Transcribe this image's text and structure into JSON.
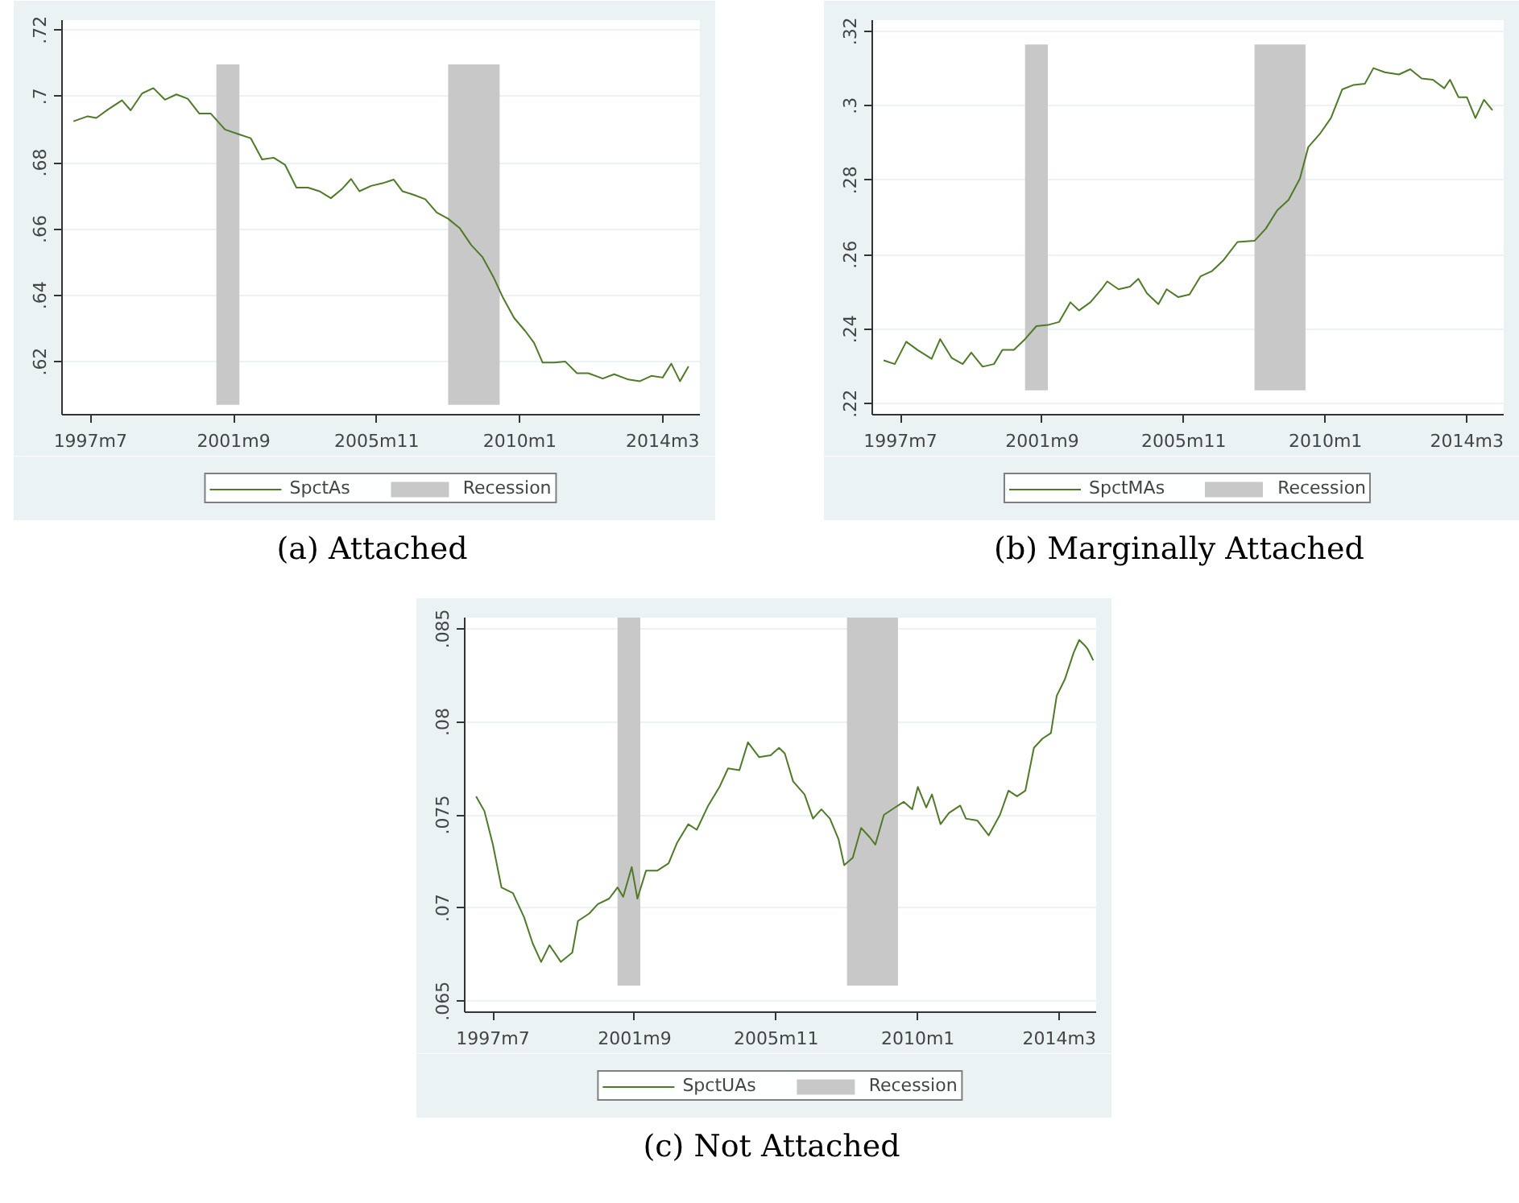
{
  "chart_data": [
    {
      "type": "line",
      "title": "(a) Attached",
      "grid": "y",
      "legend": "bottom",
      "marker": "none",
      "line_style": "solid",
      "x": [
        "1997-01",
        "1997-06",
        "1997-09",
        "1998-01",
        "1998-06",
        "1998-09",
        "1999-01",
        "1999-05",
        "1999-09",
        "2000-01",
        "2000-05",
        "2000-09",
        "2001-01",
        "2001-06",
        "2001-11",
        "2002-03",
        "2002-07",
        "2002-11",
        "2003-03",
        "2003-07",
        "2003-11",
        "2004-03",
        "2004-07",
        "2004-11",
        "2005-02",
        "2005-05",
        "2005-09",
        "2006-01",
        "2006-05",
        "2006-08",
        "2006-12",
        "2007-04",
        "2007-08",
        "2007-12",
        "2008-04",
        "2008-08",
        "2008-12",
        "2009-04",
        "2009-07",
        "2009-11",
        "2010-03",
        "2010-06",
        "2010-09",
        "2011-01",
        "2011-05",
        "2011-09",
        "2012-01",
        "2012-06",
        "2012-10",
        "2013-03",
        "2013-07",
        "2013-11",
        "2014-03",
        "2014-06",
        "2014-09",
        "2014-12"
      ],
      "series": [
        {
          "name": "SpctAs",
          "color": "#4f7a28",
          "values": [
            0.6925,
            0.694,
            0.6935,
            0.696,
            0.6988,
            0.6958,
            0.7009,
            0.7025,
            0.699,
            0.7006,
            0.6993,
            0.6948,
            0.6948,
            0.69,
            0.6885,
            0.6874,
            0.681,
            0.6815,
            0.6794,
            0.6725,
            0.6725,
            0.6714,
            0.6693,
            0.6722,
            0.6751,
            0.6714,
            0.673,
            0.6738,
            0.6749,
            0.6714,
            0.6703,
            0.669,
            0.665,
            0.6631,
            0.6603,
            0.6552,
            0.6515,
            0.6452,
            0.6396,
            0.6332,
            0.6292,
            0.6257,
            0.6197,
            0.6197,
            0.62,
            0.6165,
            0.6165,
            0.6149,
            0.6162,
            0.6146,
            0.6141,
            0.6157,
            0.6152,
            0.6194,
            0.6141,
            0.6186
          ]
        }
      ],
      "bands": [
        {
          "axis": "x",
          "from": "2001-03",
          "to": "2001-11",
          "label": "Recession",
          "color": "#c8c8c8"
        },
        {
          "axis": "x",
          "from": "2007-12",
          "to": "2009-06",
          "color": "#c8c8c8"
        }
      ],
      "xlim": [
        "1996-09",
        "2015-04"
      ],
      "xticks": [
        {
          "value": "1997-07",
          "label": "1997m7"
        },
        {
          "value": "2001-09",
          "label": "2001m9"
        },
        {
          "value": "2005-11",
          "label": "2005m11"
        },
        {
          "value": "2010-01",
          "label": "2010m1"
        },
        {
          "value": "2014-03",
          "label": "2014m3"
        }
      ],
      "ylim": [
        0.604,
        0.723
      ],
      "yticks": [
        {
          "value": 0.62,
          "label": ".62"
        },
        {
          "value": 0.64,
          "label": ".64"
        },
        {
          "value": 0.66,
          "label": ".66"
        },
        {
          "value": 0.68,
          "label": ".68"
        },
        {
          "value": 0.7,
          "label": ".7"
        },
        {
          "value": 0.72,
          "label": ".72"
        }
      ]
    },
    {
      "type": "line",
      "title": "(b) Marginally Attached",
      "grid": "y",
      "legend": "bottom",
      "marker": "none",
      "line_style": "solid",
      "x": [
        "1997-01",
        "1997-05",
        "1997-09",
        "1998-01",
        "1998-06",
        "1998-09",
        "1999-01",
        "1999-05",
        "1999-08",
        "1999-12",
        "2000-04",
        "2000-07",
        "2000-11",
        "2001-03",
        "2001-07",
        "2001-11",
        "2002-03",
        "2002-07",
        "2002-10",
        "2003-02",
        "2003-06",
        "2003-08",
        "2003-12",
        "2004-04",
        "2004-07",
        "2004-10",
        "2005-02",
        "2005-05",
        "2005-09",
        "2006-01",
        "2006-05",
        "2006-09",
        "2007-01",
        "2007-06",
        "2007-12",
        "2008-04",
        "2008-08",
        "2008-12",
        "2009-04",
        "2009-07",
        "2009-11",
        "2010-03",
        "2010-07",
        "2010-11",
        "2011-03",
        "2011-06",
        "2011-10",
        "2012-03",
        "2012-07",
        "2012-11",
        "2013-03",
        "2013-07",
        "2013-09",
        "2013-12",
        "2014-03",
        "2014-06",
        "2014-09",
        "2014-12"
      ],
      "series": [
        {
          "name": "SpctMAs",
          "color": "#4f7a28",
          "values": [
            0.2316,
            0.2306,
            0.2366,
            0.2344,
            0.232,
            0.2373,
            0.2323,
            0.2306,
            0.2337,
            0.2299,
            0.2306,
            0.2344,
            0.2344,
            0.2373,
            0.2408,
            0.2411,
            0.2419,
            0.2472,
            0.245,
            0.2472,
            0.2507,
            0.2528,
            0.2507,
            0.2514,
            0.2535,
            0.2496,
            0.2467,
            0.2507,
            0.2486,
            0.2493,
            0.2542,
            0.2556,
            0.2585,
            0.2634,
            0.2637,
            0.267,
            0.2719,
            0.2747,
            0.2804,
            0.2889,
            0.2924,
            0.2967,
            0.3044,
            0.3056,
            0.3059,
            0.3101,
            0.309,
            0.3084,
            0.3098,
            0.3073,
            0.307,
            0.3047,
            0.307,
            0.3023,
            0.3023,
            0.2967,
            0.3016,
            0.2988
          ]
        }
      ],
      "bands": [
        {
          "axis": "x",
          "from": "2001-03",
          "to": "2001-11",
          "label": "Recession",
          "color": "#c8c8c8"
        },
        {
          "axis": "x",
          "from": "2007-12",
          "to": "2009-06",
          "color": "#c8c8c8"
        }
      ],
      "xlim": [
        "1996-09",
        "2015-04"
      ],
      "xticks": [
        {
          "value": "1997-07",
          "label": "1997m7"
        },
        {
          "value": "2001-09",
          "label": "2001m9"
        },
        {
          "value": "2005-11",
          "label": "2005m11"
        },
        {
          "value": "2010-01",
          "label": "2010m1"
        },
        {
          "value": "2014-03",
          "label": "2014m3"
        }
      ],
      "ylim": [
        0.217,
        0.323
      ],
      "yticks": [
        {
          "value": 0.22,
          "label": ".22"
        },
        {
          "value": 0.24,
          "label": ".24"
        },
        {
          "value": 0.26,
          "label": ".26"
        },
        {
          "value": 0.28,
          "label": ".28"
        },
        {
          "value": 0.3,
          "label": ".3"
        },
        {
          "value": 0.32,
          "label": ".32"
        }
      ]
    },
    {
      "type": "line",
      "title": "(c) Not Attached",
      "grid": "y",
      "legend": "bottom",
      "marker": "none",
      "line_style": "solid",
      "x": [
        "1997-01",
        "1997-04",
        "1997-07",
        "1997-10",
        "1998-02",
        "1998-06",
        "1998-09",
        "1998-12",
        "1999-03",
        "1999-07",
        "1999-11",
        "2000-01",
        "2000-05",
        "2000-08",
        "2000-12",
        "2001-03",
        "2001-05",
        "2001-08",
        "2001-10",
        "2002-01",
        "2002-05",
        "2002-09",
        "2002-12",
        "2003-04",
        "2003-07",
        "2003-11",
        "2004-03",
        "2004-06",
        "2004-10",
        "2005-01",
        "2005-05",
        "2005-09",
        "2005-12",
        "2006-02",
        "2006-05",
        "2006-09",
        "2006-12",
        "2007-03",
        "2007-06",
        "2007-09",
        "2007-11",
        "2008-02",
        "2008-05",
        "2008-08",
        "2008-10",
        "2009-01",
        "2009-05",
        "2009-08",
        "2009-11",
        "2010-01",
        "2010-04",
        "2010-06",
        "2010-09",
        "2010-12",
        "2011-04",
        "2011-06",
        "2011-10",
        "2012-02",
        "2012-06",
        "2012-09",
        "2012-12",
        "2013-03",
        "2013-06",
        "2013-09",
        "2013-12",
        "2014-02",
        "2014-05",
        "2014-08",
        "2014-10",
        "2014-12",
        "2015-01",
        "2015-03"
      ],
      "series": [
        {
          "name": "SpctUAs",
          "color": "#4f7a28",
          "values": [
            0.076,
            0.0752,
            0.0734,
            0.0711,
            0.0708,
            0.0695,
            0.0681,
            0.0671,
            0.068,
            0.0671,
            0.0676,
            0.0693,
            0.0697,
            0.0702,
            0.0705,
            0.0711,
            0.0706,
            0.0722,
            0.0705,
            0.072,
            0.072,
            0.0724,
            0.0735,
            0.0745,
            0.0742,
            0.0755,
            0.0765,
            0.0775,
            0.0774,
            0.0789,
            0.0781,
            0.0782,
            0.0786,
            0.0783,
            0.0768,
            0.0761,
            0.0748,
            0.0753,
            0.0748,
            0.0737,
            0.0723,
            0.0727,
            0.0743,
            0.0738,
            0.0734,
            0.075,
            0.0754,
            0.0757,
            0.0753,
            0.0765,
            0.0754,
            0.0761,
            0.0745,
            0.0751,
            0.0755,
            0.0748,
            0.0747,
            0.0739,
            0.075,
            0.0763,
            0.076,
            0.0763,
            0.0786,
            0.0791,
            0.0794,
            0.0814,
            0.0823,
            0.0837,
            0.0844,
            0.0841,
            0.0839,
            0.0833
          ]
        }
      ],
      "bands": [
        {
          "axis": "x",
          "from": "2001-03",
          "to": "2001-11",
          "label": "Recession",
          "color": "#c8c8c8"
        },
        {
          "axis": "x",
          "from": "2007-12",
          "to": "2009-06",
          "color": "#c8c8c8"
        }
      ],
      "xlim": [
        "1996-09",
        "2015-04"
      ],
      "xticks": [
        {
          "value": "1997-07",
          "label": "1997m7"
        },
        {
          "value": "2001-09",
          "label": "2001m9"
        },
        {
          "value": "2005-11",
          "label": "2005m11"
        },
        {
          "value": "2010-01",
          "label": "2010m1"
        },
        {
          "value": "2014-03",
          "label": "2014m3"
        }
      ],
      "ylim": [
        0.0644,
        0.0856
      ],
      "yticks": [
        {
          "value": 0.065,
          "label": ".065"
        },
        {
          "value": 0.07,
          "label": ".07"
        },
        {
          "value": 0.075,
          "label": ".075"
        },
        {
          "value": 0.08,
          "label": ".08"
        },
        {
          "value": 0.085,
          "label": ".085"
        }
      ]
    }
  ]
}
